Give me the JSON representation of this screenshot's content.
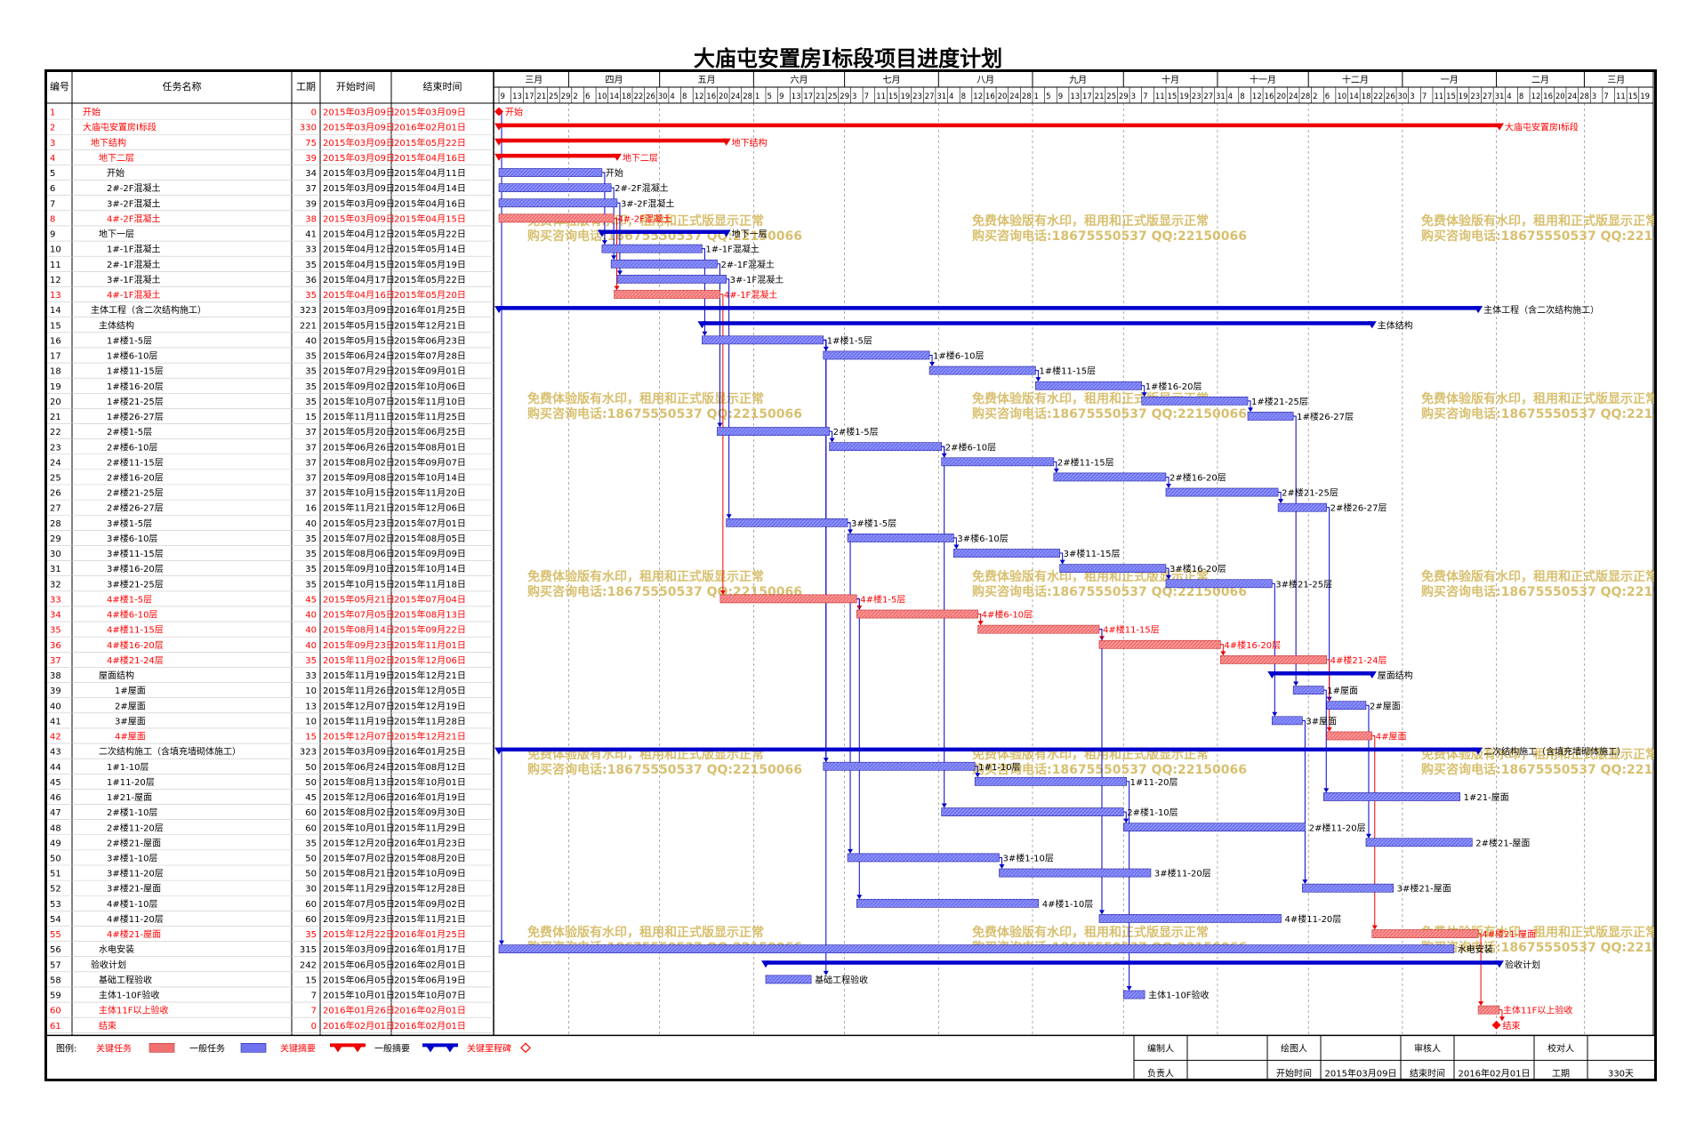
{
  "title": "大庙屯安置房Ⅰ标段项目进度计划",
  "headers": {
    "id": "编号",
    "name": "任务名称",
    "dur": "工期",
    "start": "开始时间",
    "end": "结束时间"
  },
  "months": [
    "三月",
    "四月",
    "五月",
    "六月",
    "七月",
    "八月",
    "九月",
    "十月",
    "十一月",
    "十二月",
    "一月",
    "二月",
    "三月"
  ],
  "watermark": [
    "免费体验版有水印，租用和正式版显示正常",
    "购买咨询电话:18675550537 QQ:22150066"
  ],
  "colors": {
    "critical": "#f07070",
    "normal": "#6f73ef",
    "crit_text": "#ff0000",
    "norm_text": "#000000",
    "blue_line": "#0000cc",
    "red_line": "#ee0000",
    "watermark": "#d8c070"
  },
  "legend": {
    "label": "图例:",
    "critical_task": "关键任务",
    "normal_task": "一般任务",
    "critical_summary": "关键摘要",
    "normal_summary": "一般摘要",
    "critical_milestone": "关键里程碑"
  },
  "footer": {
    "compiler": "编制人",
    "drafter": "绘图人",
    "reviewer": "审核人",
    "checker": "校对人",
    "owner": "负责人",
    "start_label": "开始时间",
    "start_value": "2015年03月09日",
    "end_label": "结束时间",
    "end_value": "2016年02月01日",
    "dur_label": "工期",
    "dur_value": "330天"
  },
  "chart_data": {
    "type": "gantt",
    "title": "大庙屯安置房Ⅰ标段项目进度计划",
    "x_range": [
      "2015-03-09",
      "2016-03-22"
    ],
    "tasks": [
      {
        "id": 1,
        "name": "开始",
        "dur": 0,
        "start": "2015年03月09日",
        "end": "2015年03月09日",
        "s": "2015-03-09",
        "e": "2015-03-09",
        "kind": "milestone",
        "crit": true,
        "level": 0,
        "label": "开始"
      },
      {
        "id": 2,
        "name": "大庙屯安置房Ⅰ标段",
        "dur": 330,
        "start": "2015年03月09日",
        "end": "2016年02月01日",
        "s": "2015-03-09",
        "e": "2016-02-01",
        "kind": "summary",
        "crit": true,
        "level": 0,
        "label": "大庙屯安置房Ⅰ标段"
      },
      {
        "id": 3,
        "name": "地下结构",
        "dur": 75,
        "start": "2015年03月09日",
        "end": "2015年05月22日",
        "s": "2015-03-09",
        "e": "2015-05-22",
        "kind": "summary",
        "crit": true,
        "level": 1,
        "label": "地下结构"
      },
      {
        "id": 4,
        "name": "地下二层",
        "dur": 39,
        "start": "2015年03月09日",
        "end": "2015年04月16日",
        "s": "2015-03-09",
        "e": "2015-04-16",
        "kind": "summary",
        "crit": true,
        "level": 2,
        "label": "地下二层"
      },
      {
        "id": 5,
        "name": "开始",
        "dur": 34,
        "start": "2015年03月09日",
        "end": "2015年04月11日",
        "s": "2015-03-09",
        "e": "2015-04-11",
        "kind": "task",
        "crit": false,
        "level": 3,
        "label": "开始"
      },
      {
        "id": 6,
        "name": "2#-2F混凝土",
        "dur": 37,
        "start": "2015年03月09日",
        "end": "2015年04月14日",
        "s": "2015-03-09",
        "e": "2015-04-14",
        "kind": "task",
        "crit": false,
        "level": 3,
        "label": "2#-2F混凝土"
      },
      {
        "id": 7,
        "name": "3#-2F混凝土",
        "dur": 39,
        "start": "2015年03月09日",
        "end": "2015年04月16日",
        "s": "2015-03-09",
        "e": "2015-04-16",
        "kind": "task",
        "crit": false,
        "level": 3,
        "label": "3#-2F混凝土"
      },
      {
        "id": 8,
        "name": "4#-2F混凝土",
        "dur": 38,
        "start": "2015年03月09日",
        "end": "2015年04月15日",
        "s": "2015-03-09",
        "e": "2015-04-15",
        "kind": "task",
        "crit": true,
        "level": 3,
        "label": "4#-2F混凝土"
      },
      {
        "id": 9,
        "name": "地下一层",
        "dur": 41,
        "start": "2015年04月12日",
        "end": "2015年05月22日",
        "s": "2015-04-12",
        "e": "2015-05-22",
        "kind": "summary",
        "crit": false,
        "level": 2,
        "label": "地下一层"
      },
      {
        "id": 10,
        "name": "1#-1F混凝土",
        "dur": 33,
        "start": "2015年04月12日",
        "end": "2015年05月14日",
        "s": "2015-04-12",
        "e": "2015-05-14",
        "kind": "task",
        "crit": false,
        "level": 3,
        "label": "1#-1F混凝土"
      },
      {
        "id": 11,
        "name": "2#-1F混凝土",
        "dur": 35,
        "start": "2015年04月15日",
        "end": "2015年05月19日",
        "s": "2015-04-15",
        "e": "2015-05-19",
        "kind": "task",
        "crit": false,
        "level": 3,
        "label": "2#-1F混凝土"
      },
      {
        "id": 12,
        "name": "3#-1F混凝土",
        "dur": 36,
        "start": "2015年04月17日",
        "end": "2015年05月22日",
        "s": "2015-04-17",
        "e": "2015-05-22",
        "kind": "task",
        "crit": false,
        "level": 3,
        "label": "3#-1F混凝土"
      },
      {
        "id": 13,
        "name": "4#-1F混凝土",
        "dur": 35,
        "start": "2015年04月16日",
        "end": "2015年05月20日",
        "s": "2015-04-16",
        "e": "2015-05-20",
        "kind": "task",
        "crit": true,
        "level": 3,
        "label": "4#-1F混凝土"
      },
      {
        "id": 14,
        "name": "主体工程（含二次结构施工）",
        "dur": 323,
        "start": "2015年03月09日",
        "end": "2016年01月25日",
        "s": "2015-03-09",
        "e": "2016-01-25",
        "kind": "summary",
        "crit": false,
        "level": 1,
        "label": "主体工程（含二次结构施工）"
      },
      {
        "id": 15,
        "name": "主体结构",
        "dur": 221,
        "start": "2015年05月15日",
        "end": "2015年12月21日",
        "s": "2015-05-15",
        "e": "2015-12-21",
        "kind": "summary",
        "crit": false,
        "level": 2,
        "label": "主体结构"
      },
      {
        "id": 16,
        "name": "1#楼1-5层",
        "dur": 40,
        "start": "2015年05月15日",
        "end": "2015年06月23日",
        "s": "2015-05-15",
        "e": "2015-06-23",
        "kind": "task",
        "crit": false,
        "level": 3,
        "label": "1#楼1-5层"
      },
      {
        "id": 17,
        "name": "1#楼6-10层",
        "dur": 35,
        "start": "2015年06月24日",
        "end": "2015年07月28日",
        "s": "2015-06-24",
        "e": "2015-07-28",
        "kind": "task",
        "crit": false,
        "level": 3,
        "label": "1#楼6-10层"
      },
      {
        "id": 18,
        "name": "1#楼11-15层",
        "dur": 35,
        "start": "2015年07月29日",
        "end": "2015年09月01日",
        "s": "2015-07-29",
        "e": "2015-09-01",
        "kind": "task",
        "crit": false,
        "level": 3,
        "label": "1#楼11-15层"
      },
      {
        "id": 19,
        "name": "1#楼16-20层",
        "dur": 35,
        "start": "2015年09月02日",
        "end": "2015年10月06日",
        "s": "2015-09-02",
        "e": "2015-10-06",
        "kind": "task",
        "crit": false,
        "level": 3,
        "label": "1#楼16-20层"
      },
      {
        "id": 20,
        "name": "1#楼21-25层",
        "dur": 35,
        "start": "2015年10月07日",
        "end": "2015年11月10日",
        "s": "2015-10-07",
        "e": "2015-11-10",
        "kind": "task",
        "crit": false,
        "level": 3,
        "label": "1#楼21-25层"
      },
      {
        "id": 21,
        "name": "1#楼26-27层",
        "dur": 15,
        "start": "2015年11月11日",
        "end": "2015年11月25日",
        "s": "2015-11-11",
        "e": "2015-11-25",
        "kind": "task",
        "crit": false,
        "level": 3,
        "label": "1#楼26-27层"
      },
      {
        "id": 22,
        "name": "2#楼1-5层",
        "dur": 37,
        "start": "2015年05月20日",
        "end": "2015年06月25日",
        "s": "2015-05-20",
        "e": "2015-06-25",
        "kind": "task",
        "crit": false,
        "level": 3,
        "label": "2#楼1-5层"
      },
      {
        "id": 23,
        "name": "2#楼6-10层",
        "dur": 37,
        "start": "2015年06月26日",
        "end": "2015年08月01日",
        "s": "2015-06-26",
        "e": "2015-08-01",
        "kind": "task",
        "crit": false,
        "level": 3,
        "label": "2#楼6-10层"
      },
      {
        "id": 24,
        "name": "2#楼11-15层",
        "dur": 37,
        "start": "2015年08月02日",
        "end": "2015年09月07日",
        "s": "2015-08-02",
        "e": "2015-09-07",
        "kind": "task",
        "crit": false,
        "level": 3,
        "label": "2#楼11-15层"
      },
      {
        "id": 25,
        "name": "2#楼16-20层",
        "dur": 37,
        "start": "2015年09月08日",
        "end": "2015年10月14日",
        "s": "2015-09-08",
        "e": "2015-10-14",
        "kind": "task",
        "crit": false,
        "level": 3,
        "label": "2#楼16-20层"
      },
      {
        "id": 26,
        "name": "2#楼21-25层",
        "dur": 37,
        "start": "2015年10月15日",
        "end": "2015年11月20日",
        "s": "2015-10-15",
        "e": "2015-11-20",
        "kind": "task",
        "crit": false,
        "level": 3,
        "label": "2#楼21-25层"
      },
      {
        "id": 27,
        "name": "2#楼26-27层",
        "dur": 16,
        "start": "2015年11月21日",
        "end": "2015年12月06日",
        "s": "2015-11-21",
        "e": "2015-12-06",
        "kind": "task",
        "crit": false,
        "level": 3,
        "label": "2#楼26-27层"
      },
      {
        "id": 28,
        "name": "3#楼1-5层",
        "dur": 40,
        "start": "2015年05月23日",
        "end": "2015年07月01日",
        "s": "2015-05-23",
        "e": "2015-07-01",
        "kind": "task",
        "crit": false,
        "level": 3,
        "label": "3#楼1-5层"
      },
      {
        "id": 29,
        "name": "3#楼6-10层",
        "dur": 35,
        "start": "2015年07月02日",
        "end": "2015年08月05日",
        "s": "2015-07-02",
        "e": "2015-08-05",
        "kind": "task",
        "crit": false,
        "level": 3,
        "label": "3#楼6-10层"
      },
      {
        "id": 30,
        "name": "3#楼11-15层",
        "dur": 35,
        "start": "2015年08月06日",
        "end": "2015年09月09日",
        "s": "2015-08-06",
        "e": "2015-09-09",
        "kind": "task",
        "crit": false,
        "level": 3,
        "label": "3#楼11-15层"
      },
      {
        "id": 31,
        "name": "3#楼16-20层",
        "dur": 35,
        "start": "2015年09月10日",
        "end": "2015年10月14日",
        "s": "2015-09-10",
        "e": "2015-10-14",
        "kind": "task",
        "crit": false,
        "level": 3,
        "label": "3#楼16-20层"
      },
      {
        "id": 32,
        "name": "3#楼21-25层",
        "dur": 35,
        "start": "2015年10月15日",
        "end": "2015年11月18日",
        "s": "2015-10-15",
        "e": "2015-11-18",
        "kind": "task",
        "crit": false,
        "level": 3,
        "label": "3#楼21-25层"
      },
      {
        "id": 33,
        "name": "4#楼1-5层",
        "dur": 45,
        "start": "2015年05月21日",
        "end": "2015年07月04日",
        "s": "2015-05-21",
        "e": "2015-07-04",
        "kind": "task",
        "crit": true,
        "level": 3,
        "label": "4#楼1-5层"
      },
      {
        "id": 34,
        "name": "4#楼6-10层",
        "dur": 40,
        "start": "2015年07月05日",
        "end": "2015年08月13日",
        "s": "2015-07-05",
        "e": "2015-08-13",
        "kind": "task",
        "crit": true,
        "level": 3,
        "label": "4#楼6-10层"
      },
      {
        "id": 35,
        "name": "4#楼11-15层",
        "dur": 40,
        "start": "2015年08月14日",
        "end": "2015年09月22日",
        "s": "2015-08-14",
        "e": "2015-09-22",
        "kind": "task",
        "crit": true,
        "level": 3,
        "label": "4#楼11-15层"
      },
      {
        "id": 36,
        "name": "4#楼16-20层",
        "dur": 40,
        "start": "2015年09月23日",
        "end": "2015年11月01日",
        "s": "2015-09-23",
        "e": "2015-11-01",
        "kind": "task",
        "crit": true,
        "level": 3,
        "label": "4#楼16-20层"
      },
      {
        "id": 37,
        "name": "4#楼21-24层",
        "dur": 35,
        "start": "2015年11月02日",
        "end": "2015年12月06日",
        "s": "2015-11-02",
        "e": "2015-12-06",
        "kind": "task",
        "crit": true,
        "level": 3,
        "label": "4#楼21-24层"
      },
      {
        "id": 38,
        "name": "屋面结构",
        "dur": 33,
        "start": "2015年11月19日",
        "end": "2015年12月21日",
        "s": "2015-11-19",
        "e": "2015-12-21",
        "kind": "summary",
        "crit": false,
        "level": 2,
        "label": "屋面结构"
      },
      {
        "id": 39,
        "name": "1#屋面",
        "dur": 10,
        "start": "2015年11月26日",
        "end": "2015年12月05日",
        "s": "2015-11-26",
        "e": "2015-12-05",
        "kind": "task",
        "crit": false,
        "level": 4,
        "label": "1#屋面"
      },
      {
        "id": 40,
        "name": "2#屋面",
        "dur": 13,
        "start": "2015年12月07日",
        "end": "2015年12月19日",
        "s": "2015-12-07",
        "e": "2015-12-19",
        "kind": "task",
        "crit": false,
        "level": 4,
        "label": "2#屋面"
      },
      {
        "id": 41,
        "name": "3#屋面",
        "dur": 10,
        "start": "2015年11月19日",
        "end": "2015年11月28日",
        "s": "2015-11-19",
        "e": "2015-11-28",
        "kind": "task",
        "crit": false,
        "level": 4,
        "label": "3#屋面"
      },
      {
        "id": 42,
        "name": "4#屋面",
        "dur": 15,
        "start": "2015年12月07日",
        "end": "2015年12月21日",
        "s": "2015-12-07",
        "e": "2015-12-21",
        "kind": "task",
        "crit": true,
        "level": 4,
        "label": "4#屋面"
      },
      {
        "id": 43,
        "name": "二次结构施工（含填充墙砌体施工）",
        "dur": 323,
        "start": "2015年03月09日",
        "end": "2016年01月25日",
        "s": "2015-03-09",
        "e": "2016-01-25",
        "kind": "summary",
        "crit": false,
        "level": 2,
        "label": "二次结构施工（含填充墙砌体施工）"
      },
      {
        "id": 44,
        "name": "1#1-10层",
        "dur": 50,
        "start": "2015年06月24日",
        "end": "2015年08月12日",
        "s": "2015-06-24",
        "e": "2015-08-12",
        "kind": "task",
        "crit": false,
        "level": 3,
        "label": "1#1-10层"
      },
      {
        "id": 45,
        "name": "1#11-20层",
        "dur": 50,
        "start": "2015年08月13日",
        "end": "2015年10月01日",
        "s": "2015-08-13",
        "e": "2015-10-01",
        "kind": "task",
        "crit": false,
        "level": 3,
        "label": "1#11-20层"
      },
      {
        "id": 46,
        "name": "1#21-屋面",
        "dur": 45,
        "start": "2015年12月06日",
        "end": "2016年01月19日",
        "s": "2015-12-06",
        "e": "2016-01-19",
        "kind": "task",
        "crit": false,
        "level": 3,
        "label": "1#21-屋面"
      },
      {
        "id": 47,
        "name": "2#楼1-10层",
        "dur": 60,
        "start": "2015年08月02日",
        "end": "2015年09月30日",
        "s": "2015-08-02",
        "e": "2015-09-30",
        "kind": "task",
        "crit": false,
        "level": 3,
        "label": "2#楼1-10层"
      },
      {
        "id": 48,
        "name": "2#楼11-20层",
        "dur": 60,
        "start": "2015年10月01日",
        "end": "2015年11月29日",
        "s": "2015-10-01",
        "e": "2015-11-29",
        "kind": "task",
        "crit": false,
        "level": 3,
        "label": "2#楼11-20层"
      },
      {
        "id": 49,
        "name": "2#楼21-屋面",
        "dur": 35,
        "start": "2015年12月20日",
        "end": "2016年01月23日",
        "s": "2015-12-20",
        "e": "2016-01-23",
        "kind": "task",
        "crit": false,
        "level": 3,
        "label": "2#楼21-屋面"
      },
      {
        "id": 50,
        "name": "3#楼1-10层",
        "dur": 50,
        "start": "2015年07月02日",
        "end": "2015年08月20日",
        "s": "2015-07-02",
        "e": "2015-08-20",
        "kind": "task",
        "crit": false,
        "level": 3,
        "label": "3#楼1-10层"
      },
      {
        "id": 51,
        "name": "3#楼11-20层",
        "dur": 50,
        "start": "2015年08月21日",
        "end": "2015年10月09日",
        "s": "2015-08-21",
        "e": "2015-10-09",
        "kind": "task",
        "crit": false,
        "level": 3,
        "label": "3#楼11-20层"
      },
      {
        "id": 52,
        "name": "3#楼21-屋面",
        "dur": 30,
        "start": "2015年11月29日",
        "end": "2015年12月28日",
        "s": "2015-11-29",
        "e": "2015-12-28",
        "kind": "task",
        "crit": false,
        "level": 3,
        "label": "3#楼21-屋面"
      },
      {
        "id": 53,
        "name": "4#楼1-10层",
        "dur": 60,
        "start": "2015年07月05日",
        "end": "2015年09月02日",
        "s": "2015-07-05",
        "e": "2015-09-02",
        "kind": "task",
        "crit": false,
        "level": 3,
        "label": "4#楼1-10层"
      },
      {
        "id": 54,
        "name": "4#楼11-20层",
        "dur": 60,
        "start": "2015年09月23日",
        "end": "2015年11月21日",
        "s": "2015-09-23",
        "e": "2015-11-21",
        "kind": "task",
        "crit": false,
        "level": 3,
        "label": "4#楼11-20层"
      },
      {
        "id": 55,
        "name": "4#楼21-屋面",
        "dur": 35,
        "start": "2015年12月22日",
        "end": "2016年01月25日",
        "s": "2015-12-22",
        "e": "2016-01-25",
        "kind": "task",
        "crit": true,
        "level": 3,
        "label": "4#楼21-屋面"
      },
      {
        "id": 56,
        "name": "水电安装",
        "dur": 315,
        "start": "2015年03月09日",
        "end": "2016年01月17日",
        "s": "2015-03-09",
        "e": "2016-01-17",
        "kind": "task",
        "crit": false,
        "level": 2,
        "label": "水电安装"
      },
      {
        "id": 57,
        "name": "验收计划",
        "dur": 242,
        "start": "2015年06月05日",
        "end": "2016年02月01日",
        "s": "2015-06-05",
        "e": "2016-02-01",
        "kind": "summary",
        "crit": false,
        "level": 1,
        "label": "验收计划"
      },
      {
        "id": 58,
        "name": "基础工程验收",
        "dur": 15,
        "start": "2015年06月05日",
        "end": "2015年06月19日",
        "s": "2015-06-05",
        "e": "2015-06-19",
        "kind": "task",
        "crit": false,
        "level": 2,
        "label": "基础工程验收"
      },
      {
        "id": 59,
        "name": "主体1-10F验收",
        "dur": 7,
        "start": "2015年10月01日",
        "end": "2015年10月07日",
        "s": "2015-10-01",
        "e": "2015-10-07",
        "kind": "task",
        "crit": false,
        "level": 2,
        "label": "主体1-10F验收"
      },
      {
        "id": 60,
        "name": "主体11F以上验收",
        "dur": 7,
        "start": "2016年01月26日",
        "end": "2016年02月01日",
        "s": "2016-01-26",
        "e": "2016-02-01",
        "kind": "task",
        "crit": true,
        "level": 2,
        "label": "主体11F以上验收"
      },
      {
        "id": 61,
        "name": "结束",
        "dur": 0,
        "start": "2016年02月01日",
        "end": "2016年02月01日",
        "s": "2016-02-01",
        "e": "2016-02-01",
        "kind": "milestone",
        "crit": true,
        "level": 2,
        "label": "结束"
      }
    ]
  }
}
